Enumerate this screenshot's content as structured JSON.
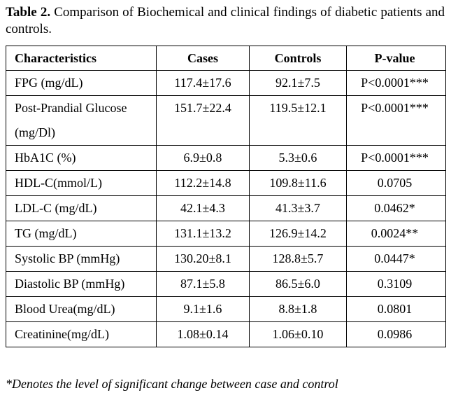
{
  "caption": {
    "label": "Table 2.",
    "text": "Comparison of Biochemical and clinical findings of diabetic patients and controls."
  },
  "table": {
    "headers": [
      "Characteristics",
      "Cases",
      "Controls",
      "P-value"
    ],
    "rows": [
      [
        "FPG (mg/dL)",
        "117.4±17.6",
        "92.1±7.5",
        "P<0.0001***"
      ],
      [
        "Post-Prandial Glucose (mg/Dl)",
        "151.7±22.4",
        "119.5±12.1",
        "P<0.0001***"
      ],
      [
        "HbA1C (%)",
        "6.9±0.8",
        "5.3±0.6",
        "P<0.0001***"
      ],
      [
        "HDL-C(mmol/L)",
        "112.2±14.8",
        "109.8±11.6",
        "0.0705"
      ],
      [
        "LDL-C (mg/dL)",
        "42.1±4.3",
        "41.3±3.7",
        "0.0462*"
      ],
      [
        "TG (mg/dL)",
        "131.1±13.2",
        "126.9±14.2",
        "0.0024**"
      ],
      [
        "Systolic BP (mmHg)",
        "130.20±8.1",
        "128.8±5.7",
        "0.0447*"
      ],
      [
        "Diastolic BP (mmHg)",
        "87.1±5.8",
        "86.5±6.0",
        "0.3109"
      ],
      [
        "Blood Urea(mg/dL)",
        "9.1±1.6",
        "8.8±1.8",
        "0.0801"
      ],
      [
        "Creatinine(mg/dL)",
        "1.08±0.14",
        "1.06±0.10",
        "0.0986"
      ]
    ]
  },
  "footnote": "*Denotes the level of significant change between case and control"
}
